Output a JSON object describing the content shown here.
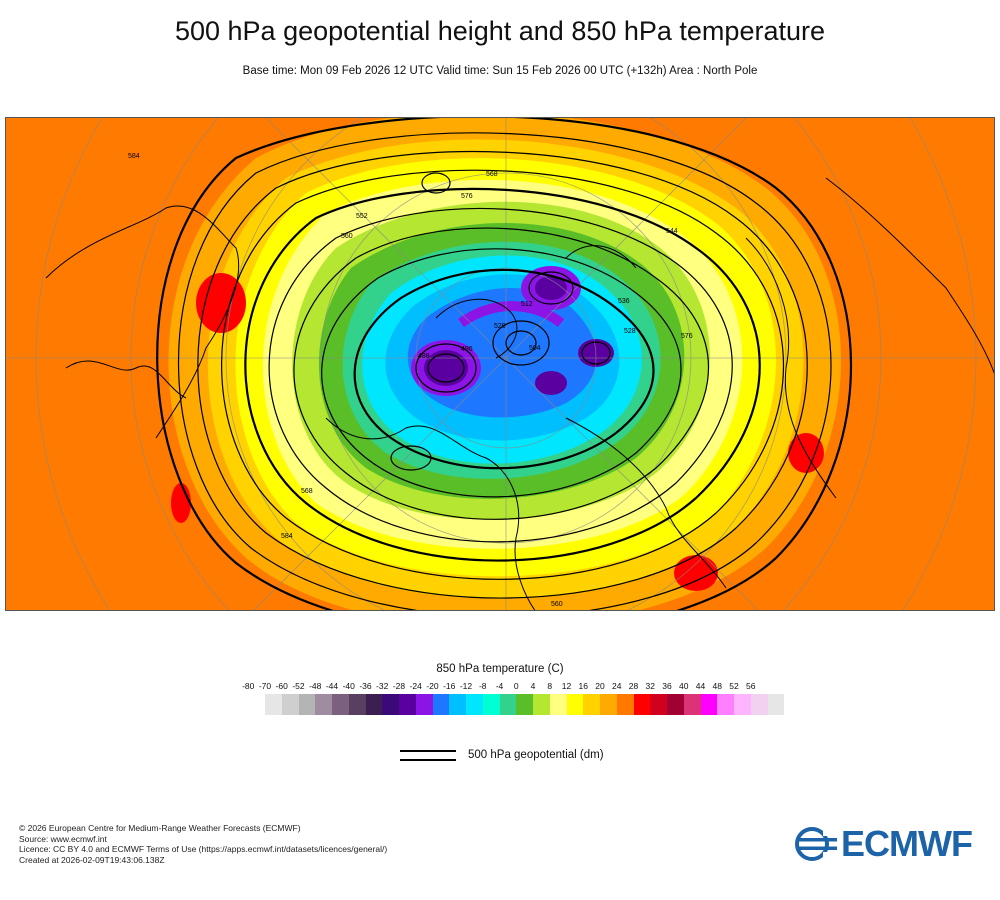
{
  "title": "500 hPa geopotential height and 850 hPa temperature",
  "subtitle": "Base time: Mon 09 Feb 2026 12 UTC Valid time: Sun 15 Feb 2026 00 UTC (+132h) Area : North Pole",
  "legend": {
    "temperature_title": "850 hPa temperature (C)",
    "ticks": [
      "-80",
      "-70",
      "-60",
      "-52",
      "-48",
      "-44",
      "-40",
      "-36",
      "-32",
      "-28",
      "-24",
      "-20",
      "-16",
      "-12",
      "-8",
      "-4",
      "0",
      "4",
      "8",
      "12",
      "16",
      "20",
      "24",
      "28",
      "32",
      "36",
      "40",
      "44",
      "48",
      "52",
      "56"
    ],
    "colors": [
      "#e6e6e6",
      "#cfcfcf",
      "#b4b4b4",
      "#a08ca0",
      "#7d6080",
      "#5a4060",
      "#3c1e50",
      "#3c0a78",
      "#5a00a0",
      "#8c14e6",
      "#1e78ff",
      "#00bfff",
      "#00e6ff",
      "#00ffd2",
      "#32d28c",
      "#5abe28",
      "#b4e632",
      "#ffff80",
      "#ffff00",
      "#ffd200",
      "#ffaa00",
      "#ff7800",
      "#ff0000",
      "#d2001e",
      "#a00032",
      "#dc3278",
      "#ff00ff",
      "#ff80ff",
      "#ffb4ff",
      "#f0d2f0",
      "#e6e6e6"
    ],
    "geopotential_label": "500 hPa geopotential (dm)"
  },
  "contour_labels": [
    "584",
    "576",
    "568",
    "560",
    "552",
    "544",
    "536",
    "528",
    "520",
    "512",
    "504",
    "496",
    "488"
  ],
  "footer": {
    "line1": "© 2026 European Centre for Medium-Range Weather Forecasts (ECMWF)",
    "line2": "Source: www.ecmwf.int",
    "line3": "Licence: CC BY 4.0 and ECMWF Terms of Use (https://apps.ecmwf.int/datasets/licences/general/)",
    "line4": "Created at 2026-02-09T19:43:06.138Z"
  },
  "logo_text": "ECMWF"
}
